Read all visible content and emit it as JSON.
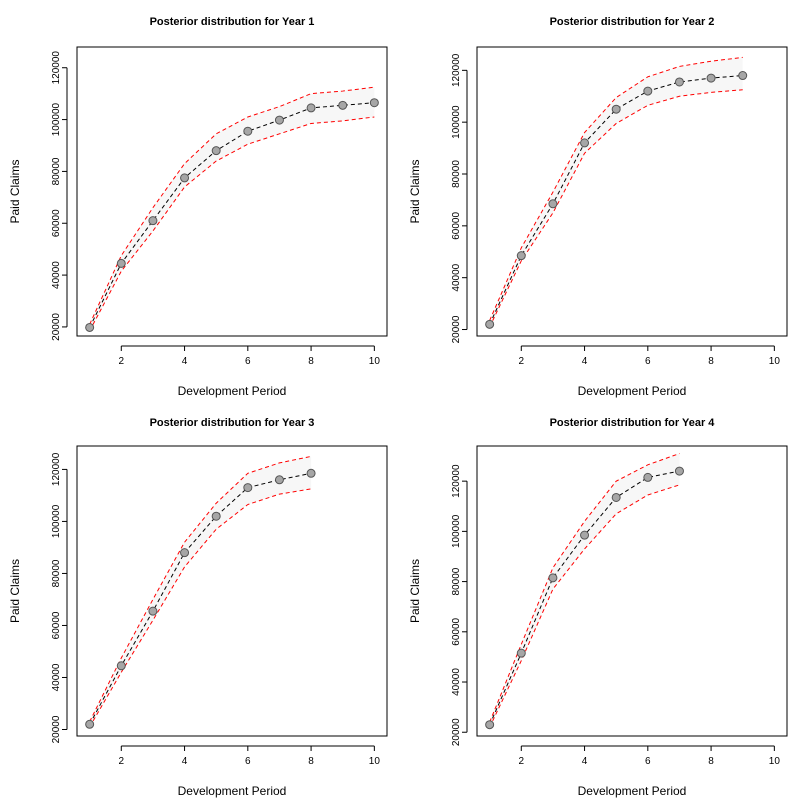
{
  "chart_data": [
    {
      "type": "line",
      "title": "Posterior distribution for Year 1",
      "xlabel": "Development Period",
      "ylabel": "Paid Claims",
      "xlim": [
        0.6,
        10.4
      ],
      "ylim": [
        16500,
        128000
      ],
      "xticks": [
        2,
        4,
        6,
        8,
        10
      ],
      "yticks": [
        20000,
        40000,
        60000,
        80000,
        100000,
        120000
      ],
      "grid": false,
      "series": [
        {
          "role": "mean",
          "color": "#000000",
          "style": "dashed",
          "markers": true,
          "x": [
            1,
            2,
            3,
            4,
            5,
            6,
            7,
            8,
            9,
            10
          ],
          "values": [
            19800,
            44500,
            61000,
            77500,
            88000,
            95500,
            99800,
            104500,
            105500,
            106500
          ]
        },
        {
          "role": "upper",
          "color": "#ff0000",
          "style": "dashed",
          "markers": false,
          "x": [
            1,
            2,
            3,
            4,
            5,
            6,
            7,
            8,
            9,
            10
          ],
          "values": [
            21000,
            47500,
            66000,
            83000,
            94500,
            101000,
            105000,
            110000,
            111000,
            112500
          ]
        },
        {
          "role": "lower",
          "color": "#ff0000",
          "style": "dashed",
          "markers": false,
          "x": [
            1,
            2,
            3,
            4,
            5,
            6,
            7,
            8,
            9,
            10
          ],
          "values": [
            18500,
            41500,
            57000,
            74000,
            84000,
            90500,
            94500,
            98500,
            99500,
            101000
          ]
        }
      ]
    },
    {
      "type": "line",
      "title": "Posterior distribution for Year 2",
      "xlabel": "Development Period",
      "ylabel": "Paid Claims",
      "xlim": [
        0.6,
        10.4
      ],
      "ylim": [
        17500,
        129000
      ],
      "xticks": [
        2,
        4,
        6,
        8,
        10
      ],
      "yticks": [
        20000,
        40000,
        60000,
        80000,
        100000,
        120000
      ],
      "grid": false,
      "series": [
        {
          "role": "mean",
          "color": "#000000",
          "style": "dashed",
          "markers": true,
          "x": [
            1,
            2,
            3,
            4,
            5,
            6,
            7,
            8,
            9
          ],
          "values": [
            22000,
            48500,
            68500,
            92000,
            105000,
            112000,
            115500,
            117000,
            118000
          ]
        },
        {
          "role": "upper",
          "color": "#ff0000",
          "style": "dashed",
          "markers": false,
          "x": [
            1,
            2,
            3,
            4,
            5,
            6,
            7,
            8,
            9
          ],
          "values": [
            23500,
            51500,
            73000,
            96000,
            109500,
            117500,
            121500,
            123500,
            125000
          ]
        },
        {
          "role": "lower",
          "color": "#ff0000",
          "style": "dashed",
          "markers": false,
          "x": [
            1,
            2,
            3,
            4,
            5,
            6,
            7,
            8,
            9
          ],
          "values": [
            21000,
            46500,
            65000,
            88000,
            99500,
            106500,
            110000,
            111500,
            112500
          ]
        }
      ]
    },
    {
      "type": "line",
      "title": "Posterior distribution for Year 3",
      "xlabel": "Development Period",
      "ylabel": "Paid Claims",
      "xlim": [
        0.6,
        10.4
      ],
      "ylim": [
        17500,
        129000
      ],
      "xticks": [
        2,
        4,
        6,
        8,
        10
      ],
      "yticks": [
        20000,
        40000,
        60000,
        80000,
        100000,
        120000
      ],
      "grid": false,
      "series": [
        {
          "role": "mean",
          "color": "#000000",
          "style": "dashed",
          "markers": true,
          "x": [
            1,
            2,
            3,
            4,
            5,
            6,
            7,
            8
          ],
          "values": [
            22000,
            44500,
            65500,
            88000,
            102000,
            113000,
            116000,
            118500
          ]
        },
        {
          "role": "upper",
          "color": "#ff0000",
          "style": "dashed",
          "markers": false,
          "x": [
            1,
            2,
            3,
            4,
            5,
            6,
            7,
            8
          ],
          "values": [
            23000,
            47500,
            70000,
            92000,
            107000,
            118500,
            122500,
            125000
          ]
        },
        {
          "role": "lower",
          "color": "#ff0000",
          "style": "dashed",
          "markers": false,
          "x": [
            1,
            2,
            3,
            4,
            5,
            6,
            7,
            8
          ],
          "values": [
            21000,
            42000,
            62000,
            82500,
            97000,
            106500,
            110500,
            112500
          ]
        }
      ]
    },
    {
      "type": "line",
      "title": "Posterior distribution for Year 4",
      "xlabel": "Development Period",
      "ylabel": "Paid Claims",
      "xlim": [
        0.6,
        10.4
      ],
      "ylim": [
        18500,
        134000
      ],
      "xticks": [
        2,
        4,
        6,
        8,
        10
      ],
      "yticks": [
        20000,
        40000,
        60000,
        80000,
        100000,
        120000
      ],
      "grid": false,
      "series": [
        {
          "role": "mean",
          "color": "#000000",
          "style": "dashed",
          "markers": true,
          "x": [
            1,
            2,
            3,
            4,
            5,
            6,
            7
          ],
          "values": [
            23000,
            51500,
            81500,
            98500,
            113500,
            121500,
            124000
          ]
        },
        {
          "role": "upper",
          "color": "#ff0000",
          "style": "dashed",
          "markers": false,
          "x": [
            1,
            2,
            3,
            4,
            5,
            6,
            7
          ],
          "values": [
            24000,
            55000,
            85500,
            104000,
            120000,
            126500,
            131000
          ]
        },
        {
          "role": "lower",
          "color": "#ff0000",
          "style": "dashed",
          "markers": false,
          "x": [
            1,
            2,
            3,
            4,
            5,
            6,
            7
          ],
          "values": [
            22000,
            48500,
            77000,
            93000,
            107000,
            114500,
            118500
          ]
        }
      ]
    }
  ],
  "colors": {
    "marker_fill": "#a6a6a6",
    "marker_stroke": "#555555",
    "axis": "#000000",
    "band_fill": "#f7f7f7"
  }
}
